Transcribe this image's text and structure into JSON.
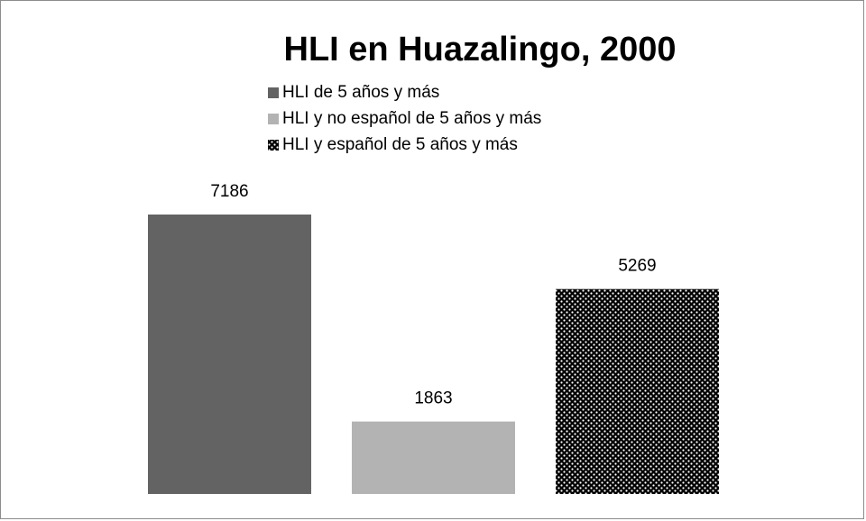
{
  "chart_data": {
    "type": "bar",
    "title": "HLI en Huazalingo, 2000",
    "categories": [
      null
    ],
    "series": [
      {
        "name": "HLI de 5 años y más",
        "color": "#636363",
        "values": [
          7186
        ]
      },
      {
        "name": "HLI y no español de 5 años y más",
        "color": "#b3b3b3",
        "values": [
          1863
        ]
      },
      {
        "name": "HLI y español de 5 años y más",
        "color": "#000000",
        "pattern": "dotted",
        "values": [
          5269
        ]
      }
    ]
  }
}
